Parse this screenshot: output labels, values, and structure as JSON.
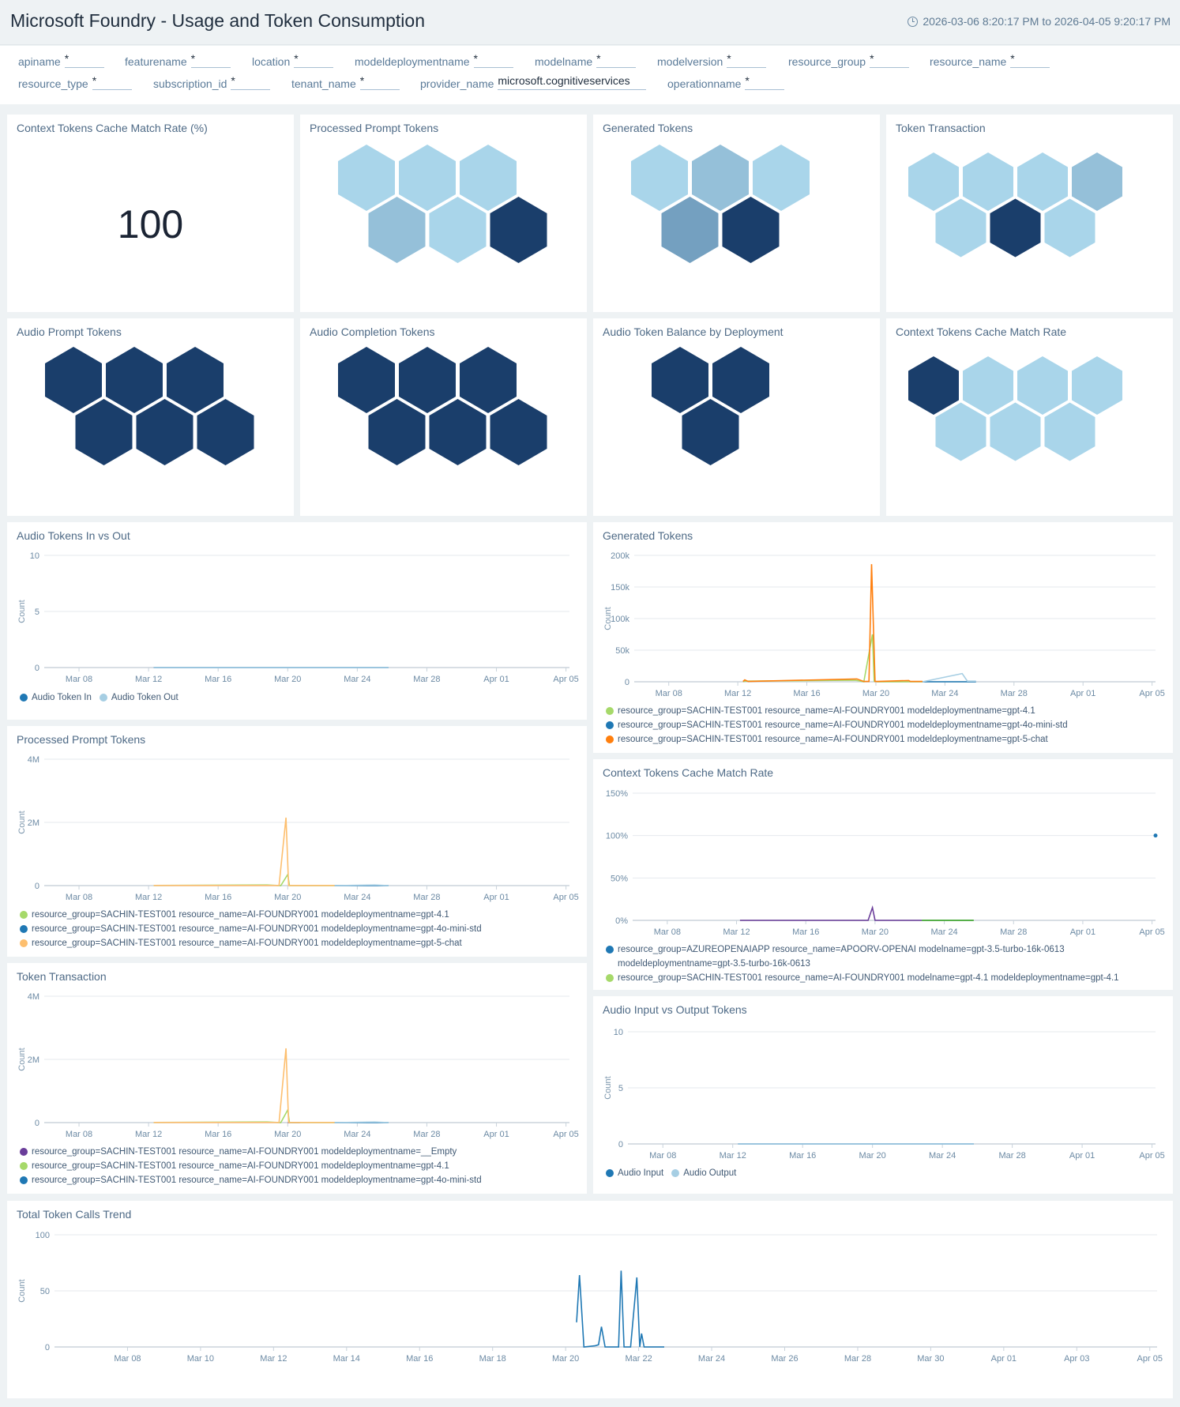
{
  "header": {
    "title": "Microsoft Foundry - Usage and Token Consumption",
    "time_range": "2026-03-06 8:20:17 PM to 2026-04-05 9:20:17 PM"
  },
  "filters": [
    {
      "label": "apiname",
      "value": "*"
    },
    {
      "label": "featurename",
      "value": "*"
    },
    {
      "label": "location",
      "value": "*"
    },
    {
      "label": "modeldeploymentname",
      "value": "*"
    },
    {
      "label": "modelname",
      "value": "*"
    },
    {
      "label": "modelversion",
      "value": "*"
    },
    {
      "label": "resource_group",
      "value": "*"
    },
    {
      "label": "resource_name",
      "value": "*"
    },
    {
      "label": "resource_type",
      "value": "*"
    },
    {
      "label": "subscription_id",
      "value": "*"
    },
    {
      "label": "tenant_name",
      "value": "*"
    },
    {
      "label": "provider_name",
      "value": "microsoft.cognitiveservices"
    },
    {
      "label": "operationname",
      "value": "*"
    }
  ],
  "colors": {
    "hex_light": "#a9d5ea",
    "hex_mid": "#95c0d9",
    "hex_midd": "#74a0c0",
    "hex_dark": "#1a3e6b",
    "series_green": "#a6d96a",
    "series_blue": "#1f78b4",
    "series_orange": "#ff7f0e",
    "series_lightorange": "#fdbf6f",
    "series_lightblue": "#a6cee3",
    "series_purple": "#6a3d9a",
    "series_darkgreen": "#33a02c"
  },
  "panels": {
    "cache_rate_single": {
      "title": "Context Tokens Cache Match Rate (%)",
      "value": "100"
    },
    "honeycomb_processed": {
      "title": "Processed Prompt Tokens",
      "cells": [
        "light",
        "light",
        "light",
        "mid",
        "light",
        "dark"
      ]
    },
    "honeycomb_generated": {
      "title": "Generated Tokens",
      "cells": [
        "light",
        "mid",
        "light",
        "midd",
        "dark"
      ]
    },
    "honeycomb_transaction": {
      "title": "Token Transaction",
      "cells": [
        "light",
        "light",
        "light",
        "mid",
        "light",
        "dark",
        "light"
      ]
    },
    "honeycomb_audio_prompt": {
      "title": "Audio Prompt Tokens",
      "cells": [
        "dark",
        "dark",
        "dark",
        "dark",
        "dark",
        "dark"
      ]
    },
    "honeycomb_audio_completion": {
      "title": "Audio Completion Tokens",
      "cells": [
        "dark",
        "dark",
        "dark",
        "dark",
        "dark",
        "dark"
      ]
    },
    "honeycomb_audio_balance": {
      "title": "Audio Token Balance by Deployment",
      "cells": [
        "dark",
        "dark",
        "dark"
      ]
    },
    "honeycomb_cache_rate": {
      "title": "Context Tokens Cache Match Rate",
      "cells": [
        "dark",
        "light",
        "light",
        "light",
        "light",
        "light",
        "light"
      ]
    }
  },
  "chart_data": [
    {
      "id": "audio_in_out",
      "type": "line",
      "title": "Audio Tokens In vs Out",
      "ylabel": "Count",
      "ylim": [
        0,
        10
      ],
      "yticks": [
        "0",
        "5",
        "10"
      ],
      "yticks_values": [
        0,
        5,
        10
      ],
      "xlim_days": [
        6.0,
        36.2
      ],
      "xticks": [
        "Mar 08",
        "Mar 12",
        "Mar 16",
        "Mar 20",
        "Mar 24",
        "Mar 28",
        "Apr 01",
        "Apr 05"
      ],
      "xticks_days": [
        8,
        12,
        16,
        20,
        24,
        28,
        32,
        36
      ],
      "legend_style": "inline",
      "series": [
        {
          "name": "Audio Token In",
          "color": "#1f78b4",
          "x": [
            12.3,
            25.8
          ],
          "y": [
            0,
            0
          ]
        },
        {
          "name": "Audio Token Out",
          "color": "#a6cee3",
          "x": [
            12.3,
            25.8
          ],
          "y": [
            0,
            0
          ]
        }
      ]
    },
    {
      "id": "generated_tokens",
      "type": "line",
      "title": "Generated Tokens",
      "ylabel": "Count",
      "ylim": [
        0,
        200000
      ],
      "yticks": [
        "0",
        "50k",
        "100k",
        "150k",
        "200k"
      ],
      "yticks_values": [
        0,
        50000,
        100000,
        150000,
        200000
      ],
      "xlim_days": [
        6.0,
        36.2
      ],
      "xticks": [
        "Mar 08",
        "Mar 12",
        "Mar 16",
        "Mar 20",
        "Mar 24",
        "Mar 28",
        "Apr 01",
        "Apr 05"
      ],
      "xticks_days": [
        8,
        12,
        16,
        20,
        24,
        28,
        32,
        36
      ],
      "legend_style": "list",
      "series": [
        {
          "name": "resource_group=SACHIN-TEST001 resource_name=AI-FOUNDRY001 modeldeploymentname=gpt-4.1",
          "color": "#a6d96a",
          "x": [
            12.3,
            12.5,
            18.8,
            19.3,
            19.8,
            19.9,
            20.1,
            22.7
          ],
          "y": [
            500,
            1000,
            2500,
            0,
            75000,
            1000,
            0,
            0
          ]
        },
        {
          "name": "resource_group=SACHIN-TEST001 resource_name=AI-FOUNDRY001 modeldeploymentname=gpt-4o-mini-std",
          "color": "#1f78b4",
          "x": [
            22.7,
            25.0,
            25.3,
            25.8
          ],
          "y": [
            0,
            0,
            0,
            0
          ]
        },
        {
          "name": "resource_group=SACHIN-TEST001 resource_name=AI-FOUNDRY001 modeldeploymentname=gpt-5-chat",
          "color": "#ff7f0e",
          "x": [
            12.3,
            12.4,
            12.6,
            18.9,
            19.3,
            19.6,
            19.75,
            19.95,
            20.1,
            21.9,
            22.0,
            22.7
          ],
          "y": [
            500,
            3000,
            500,
            4500,
            500,
            500,
            186000,
            500,
            500,
            2000,
            500,
            500
          ]
        },
        {
          "name": "light-blue",
          "color": "#a6cee3",
          "legend": false,
          "x": [
            22.7,
            25.0,
            25.3,
            25.8
          ],
          "y": [
            0,
            13000,
            1000,
            1000
          ]
        }
      ]
    },
    {
      "id": "processed_prompt",
      "type": "line",
      "title": "Processed Prompt Tokens",
      "ylabel": "Count",
      "ylim": [
        0,
        4000000
      ],
      "yticks": [
        "0",
        "2M",
        "4M"
      ],
      "yticks_values": [
        0,
        2000000,
        4000000
      ],
      "xlim_days": [
        6.0,
        36.2
      ],
      "xticks": [
        "Mar 08",
        "Mar 12",
        "Mar 16",
        "Mar 20",
        "Mar 24",
        "Mar 28",
        "Apr 01",
        "Apr 05"
      ],
      "xticks_days": [
        8,
        12,
        16,
        20,
        24,
        28,
        32,
        36
      ],
      "legend_style": "list",
      "series": [
        {
          "name": "resource_group=SACHIN-TEST001 resource_name=AI-FOUNDRY001 modeldeploymentname=gpt-4.1",
          "color": "#a6d96a",
          "x": [
            12.3,
            18.8,
            19.6,
            20.0,
            20.1,
            22.7
          ],
          "y": [
            5000,
            20000,
            0,
            350000,
            0,
            0
          ]
        },
        {
          "name": "resource_group=SACHIN-TEST001 resource_name=AI-FOUNDRY001 modeldeploymentname=gpt-4o-mini-std",
          "color": "#1f78b4",
          "x": [
            22.7,
            25.8
          ],
          "y": [
            0,
            0
          ]
        },
        {
          "name": "resource_group=SACHIN-TEST001 resource_name=AI-FOUNDRY001 modeldeploymentname=gpt-5-chat",
          "color": "#fdbf6f",
          "x": [
            12.3,
            19.5,
            19.9,
            20.05,
            22.7
          ],
          "y": [
            5000,
            5000,
            2150000,
            5000,
            5000
          ]
        },
        {
          "name": "light-blue",
          "color": "#a6cee3",
          "legend": false,
          "x": [
            22.7,
            25.0,
            25.8
          ],
          "y": [
            0,
            20000,
            0
          ]
        }
      ]
    },
    {
      "id": "cache_match_rate",
      "type": "line",
      "title": "Context Tokens Cache Match Rate",
      "ylabel": "",
      "ylim": [
        0,
        150
      ],
      "yticks": [
        "0%",
        "50%",
        "100%",
        "150%"
      ],
      "yticks_values": [
        0,
        50,
        100,
        150
      ],
      "xlim_days": [
        6.0,
        36.2
      ],
      "xticks": [
        "Mar 08",
        "Mar 12",
        "Mar 16",
        "Mar 20",
        "Mar 24",
        "Mar 28",
        "Apr 01",
        "Apr 05"
      ],
      "xticks_days": [
        8,
        12,
        16,
        20,
        24,
        28,
        32,
        36
      ],
      "legend_style": "list",
      "series": [
        {
          "name": "resource_group=AZUREOPENAIAPP resource_name=APOORV-OPENAI modelname=gpt-3.5-turbo-16k-0613 modeldeploymentname=gpt-3.5-turbo-16k-0613",
          "color": "#1f78b4",
          "x": [
            36.2
          ],
          "y": [
            100
          ],
          "marker": true
        },
        {
          "name": "resource_group=SACHIN-TEST001 resource_name=AI-FOUNDRY001 modelname=gpt-4.1 modeldeploymentname=gpt-4.1",
          "color": "#a6d96a",
          "x": [
            22.7,
            25.7
          ],
          "y": [
            0,
            0
          ]
        },
        {
          "name": "purple",
          "color": "#6a3d9a",
          "legend": false,
          "x": [
            12.2,
            19.6,
            19.85,
            20.0,
            22.7
          ],
          "y": [
            0,
            0,
            15,
            0,
            0
          ]
        },
        {
          "name": "darkgreen",
          "color": "#33a02c",
          "legend": false,
          "x": [
            22.7,
            25.7
          ],
          "y": [
            0,
            0
          ]
        }
      ]
    },
    {
      "id": "token_transaction",
      "type": "line",
      "title": "Token Transaction",
      "ylabel": "Count",
      "ylim": [
        0,
        4000000
      ],
      "yticks": [
        "0",
        "2M",
        "4M"
      ],
      "yticks_values": [
        0,
        2000000,
        4000000
      ],
      "xlim_days": [
        6.0,
        36.2
      ],
      "xticks": [
        "Mar 08",
        "Mar 12",
        "Mar 16",
        "Mar 20",
        "Mar 24",
        "Mar 28",
        "Apr 01",
        "Apr 05"
      ],
      "xticks_days": [
        8,
        12,
        16,
        20,
        24,
        28,
        32,
        36
      ],
      "legend_style": "list",
      "series": [
        {
          "name": "resource_group=SACHIN-TEST001 resource_name=AI-FOUNDRY001 modeldeploymentname=__Empty",
          "color": "#6a3d9a",
          "x": [
            20.0,
            20.7
          ],
          "y": [
            0,
            0
          ]
        },
        {
          "name": "resource_group=SACHIN-TEST001 resource_name=AI-FOUNDRY001 modeldeploymentname=gpt-4.1",
          "color": "#a6d96a",
          "x": [
            12.3,
            18.8,
            19.6,
            20.0,
            20.1,
            22.7
          ],
          "y": [
            5000,
            20000,
            0,
            400000,
            0,
            0
          ]
        },
        {
          "name": "resource_group=SACHIN-TEST001 resource_name=AI-FOUNDRY001 modeldeploymentname=gpt-4o-mini-std",
          "color": "#1f78b4",
          "x": [
            22.7,
            25.8
          ],
          "y": [
            0,
            0
          ]
        },
        {
          "name": "gpt-5-chat",
          "color": "#fdbf6f",
          "legend": false,
          "x": [
            12.3,
            19.5,
            19.9,
            20.05,
            22.7
          ],
          "y": [
            5000,
            5000,
            2350000,
            5000,
            5000
          ]
        },
        {
          "name": "light-blue",
          "color": "#a6cee3",
          "legend": false,
          "x": [
            22.7,
            25.0,
            25.8
          ],
          "y": [
            0,
            20000,
            0
          ]
        }
      ]
    },
    {
      "id": "audio_input_output",
      "type": "line",
      "title": "Audio Input vs Output Tokens",
      "ylabel": "Count",
      "ylim": [
        0,
        10
      ],
      "yticks": [
        "0",
        "5",
        "10"
      ],
      "yticks_values": [
        0,
        5,
        10
      ],
      "xlim_days": [
        6.0,
        36.2
      ],
      "xticks": [
        "Mar 08",
        "Mar 12",
        "Mar 16",
        "Mar 20",
        "Mar 24",
        "Mar 28",
        "Apr 01",
        "Apr 05"
      ],
      "xticks_days": [
        8,
        12,
        16,
        20,
        24,
        28,
        32,
        36
      ],
      "legend_style": "inline",
      "series": [
        {
          "name": "Audio Input",
          "color": "#1f78b4",
          "x": [
            12.3,
            25.8
          ],
          "y": [
            0,
            0
          ]
        },
        {
          "name": "Audio Output",
          "color": "#a6cee3",
          "x": [
            12.3,
            25.8
          ],
          "y": [
            0,
            0
          ]
        }
      ]
    },
    {
      "id": "total_calls",
      "type": "line",
      "title": "Total Token Calls Trend",
      "ylabel": "Count",
      "ylim": [
        0,
        100
      ],
      "yticks": [
        "0",
        "50",
        "100"
      ],
      "yticks_values": [
        0,
        50,
        100
      ],
      "xlim_days": [
        6.0,
        36.2
      ],
      "xticks": [
        "Mar 08",
        "Mar 10",
        "Mar 12",
        "Mar 14",
        "Mar 16",
        "Mar 18",
        "Mar 20",
        "Mar 22",
        "Mar 24",
        "Mar 26",
        "Mar 28",
        "Mar 30",
        "Apr 01",
        "Apr 03",
        "Apr 05"
      ],
      "xticks_days": [
        8,
        10,
        12,
        14,
        16,
        18,
        20,
        22,
        24,
        26,
        28,
        30,
        32,
        34,
        36
      ],
      "legend_style": "none",
      "series": [
        {
          "name": "Total Token Calls",
          "color": "#1f78b4",
          "x": [
            20.3,
            20.38,
            20.5,
            20.8,
            20.9,
            20.98,
            21.08,
            21.45,
            21.52,
            21.6,
            21.78,
            21.95,
            22.03,
            22.08,
            22.15,
            22.7
          ],
          "y": [
            22,
            64,
            0,
            1,
            2,
            18,
            0,
            0,
            68,
            0,
            0,
            62,
            0,
            12,
            0,
            0
          ]
        }
      ]
    }
  ]
}
